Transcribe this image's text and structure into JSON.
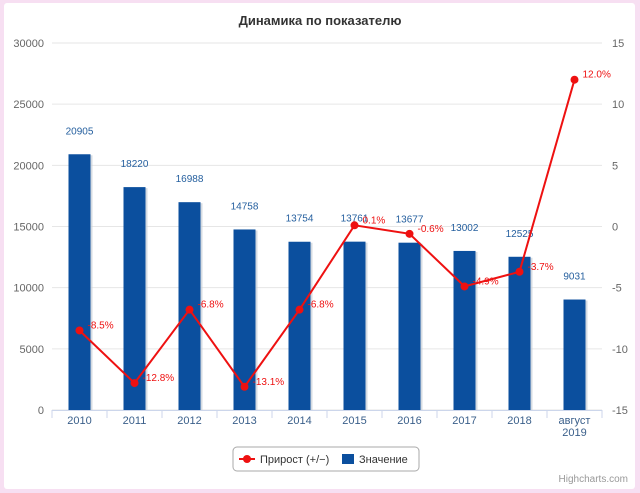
{
  "chart_data": {
    "type": "bar",
    "title": "Динамика по показателю",
    "categories": [
      "2010",
      "2011",
      "2012",
      "2013",
      "2014",
      "2015",
      "2016",
      "2017",
      "2018",
      "август 2019"
    ],
    "series": [
      {
        "name": "Значение",
        "type": "bar",
        "axis": "left",
        "color": "#0b4f9e",
        "values": [
          20905,
          18220,
          16988,
          14758,
          13754,
          13761,
          13677,
          13002,
          12525,
          9031
        ],
        "labels": [
          "20905",
          "18220",
          "16988",
          "14758",
          "13754",
          "13761",
          "13677",
          "13002",
          "12525",
          "9031"
        ]
      },
      {
        "name": "Прирост (+/−)",
        "type": "line",
        "axis": "right",
        "color": "#ee1111",
        "values": [
          -8.5,
          -12.8,
          -6.8,
          -13.1,
          -6.8,
          0.1,
          -0.6,
          -4.9,
          -3.7,
          12.0
        ],
        "labels": [
          "-8.5%",
          "-12.8%",
          "-6.8%",
          "-13.1%",
          "-6.8%",
          "0.1%",
          "-0.6%",
          "-4.9%",
          "-3.7%",
          "12.0%"
        ]
      }
    ],
    "y_left": {
      "min": 0,
      "max": 30000,
      "ticks": [
        "0",
        "5000",
        "10000",
        "15000",
        "20000",
        "25000",
        "30000"
      ]
    },
    "y_right": {
      "min": -15,
      "max": 15,
      "ticks": [
        "-15",
        "-10",
        "-5",
        "0",
        "5",
        "10",
        "15"
      ]
    },
    "grid": true,
    "legend": {
      "position": "bottom-center",
      "items": [
        "Прирост (+/−)",
        "Значение"
      ]
    },
    "credits": "Highcharts.com"
  }
}
